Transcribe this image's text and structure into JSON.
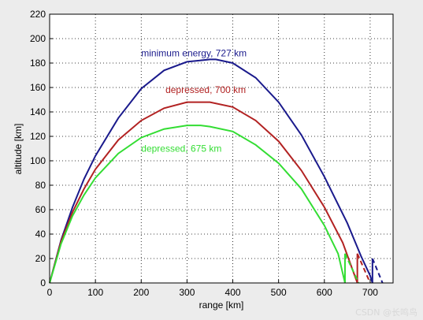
{
  "chart_data": {
    "type": "line",
    "xlabel": "range [km]",
    "ylabel": "altitude [km]",
    "xlim": [
      0,
      750
    ],
    "ylim": [
      0,
      220
    ],
    "xticks": [
      0,
      100,
      200,
      300,
      400,
      500,
      600,
      700
    ],
    "yticks": [
      0,
      20,
      40,
      60,
      80,
      100,
      120,
      140,
      160,
      180,
      200,
      220
    ],
    "grid": true,
    "series": [
      {
        "name": "minimum energy, 727 km",
        "color": "#1a1a8c",
        "label_at": [
          200,
          188
        ],
        "x": [
          0,
          25,
          50,
          75,
          100,
          150,
          200,
          250,
          300,
          350,
          363,
          400,
          450,
          500,
          550,
          600,
          650,
          680,
          700,
          705
        ],
        "y": [
          0,
          35,
          62,
          85,
          104,
          135,
          159,
          174,
          181,
          183,
          183,
          180,
          168,
          148,
          121,
          87,
          49,
          22,
          6,
          0
        ],
        "drop_at": 705,
        "drop_from": 20,
        "tail_x": [
          705,
          727
        ],
        "tail_y": [
          20,
          0
        ]
      },
      {
        "name": "depressed, 700 km",
        "color": "#b22222",
        "label_at": [
          253,
          158
        ],
        "x": [
          0,
          25,
          50,
          75,
          100,
          150,
          200,
          250,
          300,
          335,
          350,
          400,
          450,
          500,
          550,
          600,
          640,
          672
        ],
        "y": [
          0,
          34,
          58,
          77,
          93,
          117,
          133,
          143,
          148,
          148,
          148,
          144,
          133,
          116,
          92,
          62,
          33,
          0
        ],
        "drop_at": 672,
        "drop_from": 24,
        "tail_x": [
          672,
          700
        ],
        "tail_y": [
          24,
          0
        ]
      },
      {
        "name": "depressed, 675 km",
        "color": "#33dd33",
        "label_at": [
          200,
          110
        ],
        "x": [
          0,
          25,
          50,
          75,
          100,
          150,
          200,
          250,
          300,
          330,
          350,
          400,
          450,
          500,
          550,
          600,
          630,
          645
        ],
        "y": [
          0,
          32,
          55,
          72,
          86,
          106,
          119,
          126,
          129,
          129,
          128,
          124,
          113,
          98,
          77,
          47,
          24,
          0
        ],
        "drop_at": 645,
        "drop_from": 24,
        "tail_x": [
          645,
          675
        ],
        "tail_y": [
          24,
          0
        ]
      }
    ]
  },
  "watermark": "CSDN @长鸣鸟"
}
